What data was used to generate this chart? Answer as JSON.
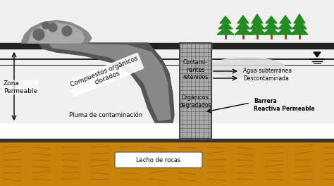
{
  "bg_color": "#f5f5f5",
  "sky_color": "#e8e8e8",
  "ground_top_color": "#c8c8c8",
  "ground_bottom_color": "#c8940a",
  "rock_color": "#c8830a",
  "barrier_color": "#888888",
  "plume_dark": "#555555",
  "plume_light": "#aaaaaa",
  "water_ellipse_color": "#cccccc",
  "labels": {
    "zona_permeable": "Zona\nPermeable",
    "compuestos": "Compuestos orgánicos\nclorados",
    "pluma": "Pluma de contaminación",
    "contaminantes": "Contami-\nnantes\nretenidos",
    "agua": "Agua subterránea\nDescontaminada",
    "organicos": "Orgánicos\ndegradados",
    "barrera": "Barrera\nReactiva Permeable",
    "lecho": "Lecho de rocas"
  },
  "title_color": "#000000",
  "label_fontsize": 7,
  "small_fontsize": 6
}
